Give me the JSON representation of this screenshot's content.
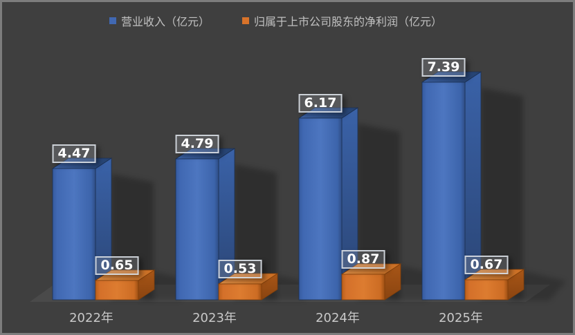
{
  "chart_data": {
    "type": "bar",
    "style": "3d-clustered-column",
    "title": "",
    "categories": [
      "2022年",
      "2023年",
      "2024年",
      "2025年"
    ],
    "series": [
      {
        "name": "营业收入（亿元）",
        "color": "#4168b2",
        "values": [
          4.47,
          4.79,
          6.17,
          7.39
        ],
        "labels": [
          "4.47",
          "4.79",
          "6.17",
          "7.39"
        ]
      },
      {
        "name": "归属于上市公司股东的净利润（亿元）",
        "color": "#d8732a",
        "values": [
          0.65,
          0.53,
          0.87,
          0.67
        ],
        "labels": [
          "0.65",
          "0.53",
          "0.87",
          "0.67"
        ]
      }
    ],
    "xlabel": "",
    "ylabel": "",
    "ylim": [
      0,
      8
    ],
    "grid": false,
    "legend_position": "top",
    "data_labels": "boxed above each bar"
  },
  "colors": {
    "background": "#3f3f3f",
    "frame_border": "#7d7d7d",
    "floor": "#4a4a4a",
    "legend_text": "#c1c1c1",
    "axis_text": "#c9c9c9",
    "value_label_text": "#ffffff",
    "value_label_border": "#d6dbe2"
  }
}
